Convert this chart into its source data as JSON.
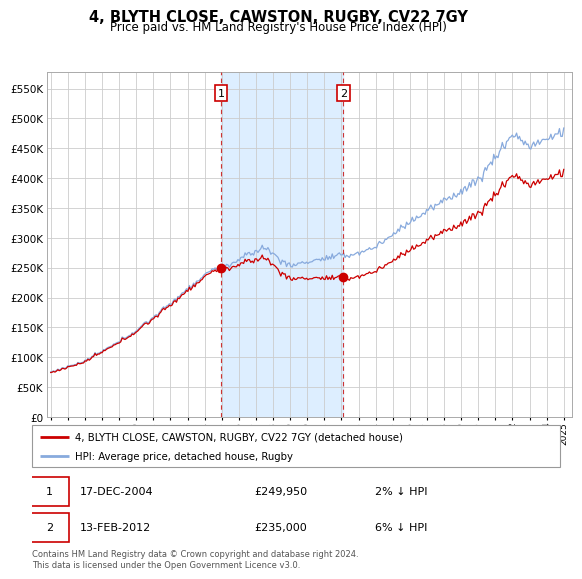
{
  "title": "4, BLYTH CLOSE, CAWSTON, RUGBY, CV22 7GY",
  "subtitle": "Price paid vs. HM Land Registry's House Price Index (HPI)",
  "ylabel_ticks": [
    0,
    50000,
    100000,
    150000,
    200000,
    250000,
    300000,
    350000,
    400000,
    450000,
    500000,
    550000
  ],
  "xmin": 1994.8,
  "xmax": 2025.5,
  "ymin": 0,
  "ymax": 577000,
  "line1_color": "#cc0000",
  "line2_color": "#88aadd",
  "shade_color": "#ddeeff",
  "transaction1_date": 2004.96,
  "transaction1_price": 249950,
  "transaction2_date": 2012.12,
  "transaction2_price": 235000,
  "transaction1_text": "17-DEC-2004",
  "transaction1_amount": "£249,950",
  "transaction1_hpi": "2% ↓ HPI",
  "transaction2_text": "13-FEB-2012",
  "transaction2_amount": "£235,000",
  "transaction2_hpi": "6% ↓ HPI",
  "legend1_label": "4, BLYTH CLOSE, CAWSTON, RUGBY, CV22 7GY (detached house)",
  "legend2_label": "HPI: Average price, detached house, Rugby",
  "footer": "Contains HM Land Registry data © Crown copyright and database right 2024.\nThis data is licensed under the Open Government Licence v3.0.",
  "background_color": "#ffffff",
  "grid_color": "#cccccc"
}
